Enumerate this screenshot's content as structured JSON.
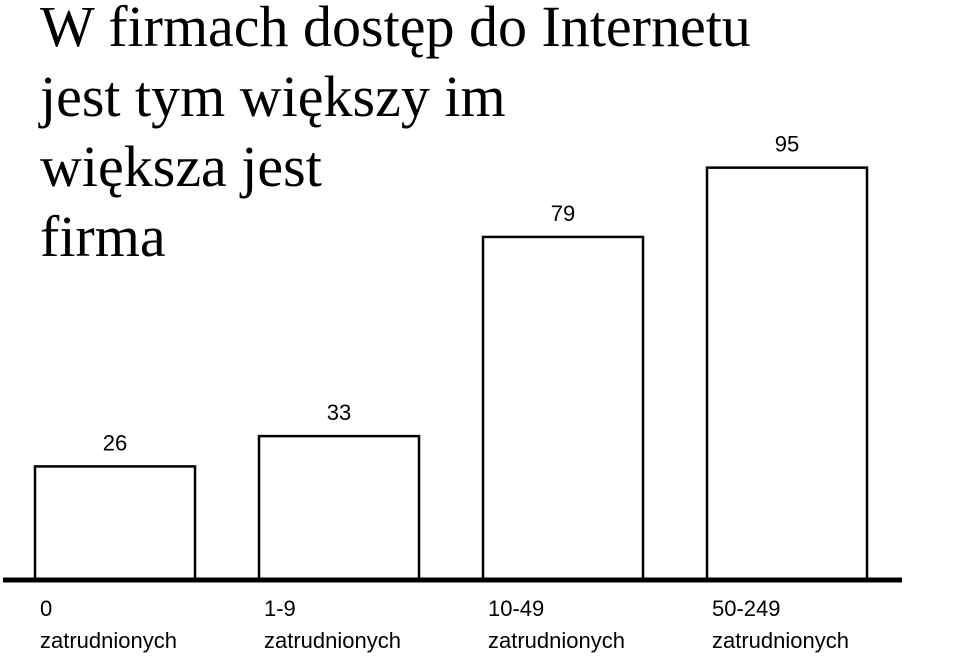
{
  "title_lines": [
    "W firmach dostęp do Internetu",
    "jest tym większy im",
    "większa jest",
    "firma"
  ],
  "chart_data": {
    "type": "bar",
    "title": "W firmach dostęp do Internetu jest tym większy im większa jest firma",
    "categories": [
      [
        "0",
        "zatrudnionych"
      ],
      [
        "1-9",
        "zatrudnionych"
      ],
      [
        "10-49",
        "zatrudnionych"
      ],
      [
        "50-249",
        "zatrudnionych"
      ]
    ],
    "values": [
      26,
      33,
      79,
      95
    ],
    "data_labels": [
      "26",
      "33",
      "79",
      "95"
    ],
    "ylim": [
      0,
      100
    ],
    "grid": false,
    "bar_fill": "#ffffff",
    "bar_stroke": "#000000",
    "axis_color": "#000000"
  }
}
